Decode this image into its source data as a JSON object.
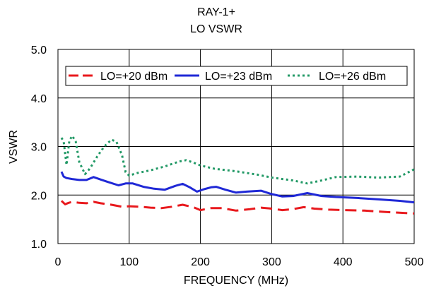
{
  "chart_data": {
    "type": "line",
    "title": "RAY-1+",
    "subtitle": "LO VSWR",
    "xlabel": "FREQUENCY (MHz)",
    "ylabel": "VSWR",
    "xlim": [
      0,
      500
    ],
    "ylim": [
      1.0,
      5.0
    ],
    "xticks": [
      "0",
      "100",
      "200",
      "300",
      "400",
      "500"
    ],
    "yticks": [
      "1.0",
      "2.0",
      "3.0",
      "4.0",
      "5.0"
    ],
    "grid": true,
    "legend_position": "top",
    "series": [
      {
        "name": "LO=+20 dBm",
        "color": "#e8191d",
        "dash": "long-dash",
        "x": [
          5,
          10,
          15,
          20,
          30,
          40,
          50,
          60,
          75,
          90,
          100,
          115,
          130,
          145,
          160,
          175,
          190,
          200,
          215,
          230,
          250,
          270,
          285,
          300,
          315,
          330,
          345,
          360,
          380,
          400,
          430,
          460,
          500
        ],
        "y": [
          1.88,
          1.81,
          1.84,
          1.86,
          1.84,
          1.83,
          1.86,
          1.83,
          1.8,
          1.76,
          1.77,
          1.76,
          1.74,
          1.73,
          1.76,
          1.8,
          1.75,
          1.69,
          1.73,
          1.73,
          1.68,
          1.71,
          1.74,
          1.72,
          1.69,
          1.71,
          1.75,
          1.72,
          1.7,
          1.69,
          1.68,
          1.65,
          1.62
        ]
      },
      {
        "name": "LO=+23 dBm",
        "color": "#1f28d6",
        "dash": "solid",
        "x": [
          5,
          8,
          12,
          20,
          30,
          40,
          50,
          60,
          70,
          85,
          95,
          105,
          120,
          135,
          150,
          165,
          175,
          185,
          195,
          205,
          215,
          222,
          235,
          250,
          265,
          285,
          300,
          315,
          330,
          350,
          370,
          390,
          420,
          450,
          480,
          500
        ],
        "y": [
          2.48,
          2.38,
          2.35,
          2.33,
          2.31,
          2.31,
          2.37,
          2.32,
          2.27,
          2.2,
          2.24,
          2.24,
          2.17,
          2.13,
          2.11,
          2.19,
          2.23,
          2.16,
          2.07,
          2.12,
          2.16,
          2.17,
          2.11,
          2.05,
          2.07,
          2.09,
          2.02,
          1.97,
          1.98,
          2.04,
          1.98,
          1.96,
          1.94,
          1.91,
          1.88,
          1.85
        ]
      },
      {
        "name": "LO=+26 dBm",
        "color": "#229966",
        "dash": "dotted",
        "x": [
          5,
          8,
          12,
          16,
          20,
          25,
          30,
          38,
          45,
          55,
          65,
          75,
          82,
          90,
          95,
          100,
          110,
          130,
          150,
          170,
          180,
          190,
          200,
          220,
          250,
          280,
          300,
          330,
          350,
          370,
          390,
          420,
          450,
          480,
          500
        ],
        "y": [
          3.18,
          3.1,
          2.62,
          3.12,
          3.22,
          3.1,
          2.68,
          2.43,
          2.55,
          2.79,
          3.0,
          3.14,
          3.1,
          2.82,
          2.47,
          2.4,
          2.45,
          2.51,
          2.59,
          2.69,
          2.72,
          2.67,
          2.61,
          2.54,
          2.49,
          2.42,
          2.36,
          2.3,
          2.24,
          2.3,
          2.37,
          2.38,
          2.36,
          2.38,
          2.53
        ]
      }
    ]
  }
}
